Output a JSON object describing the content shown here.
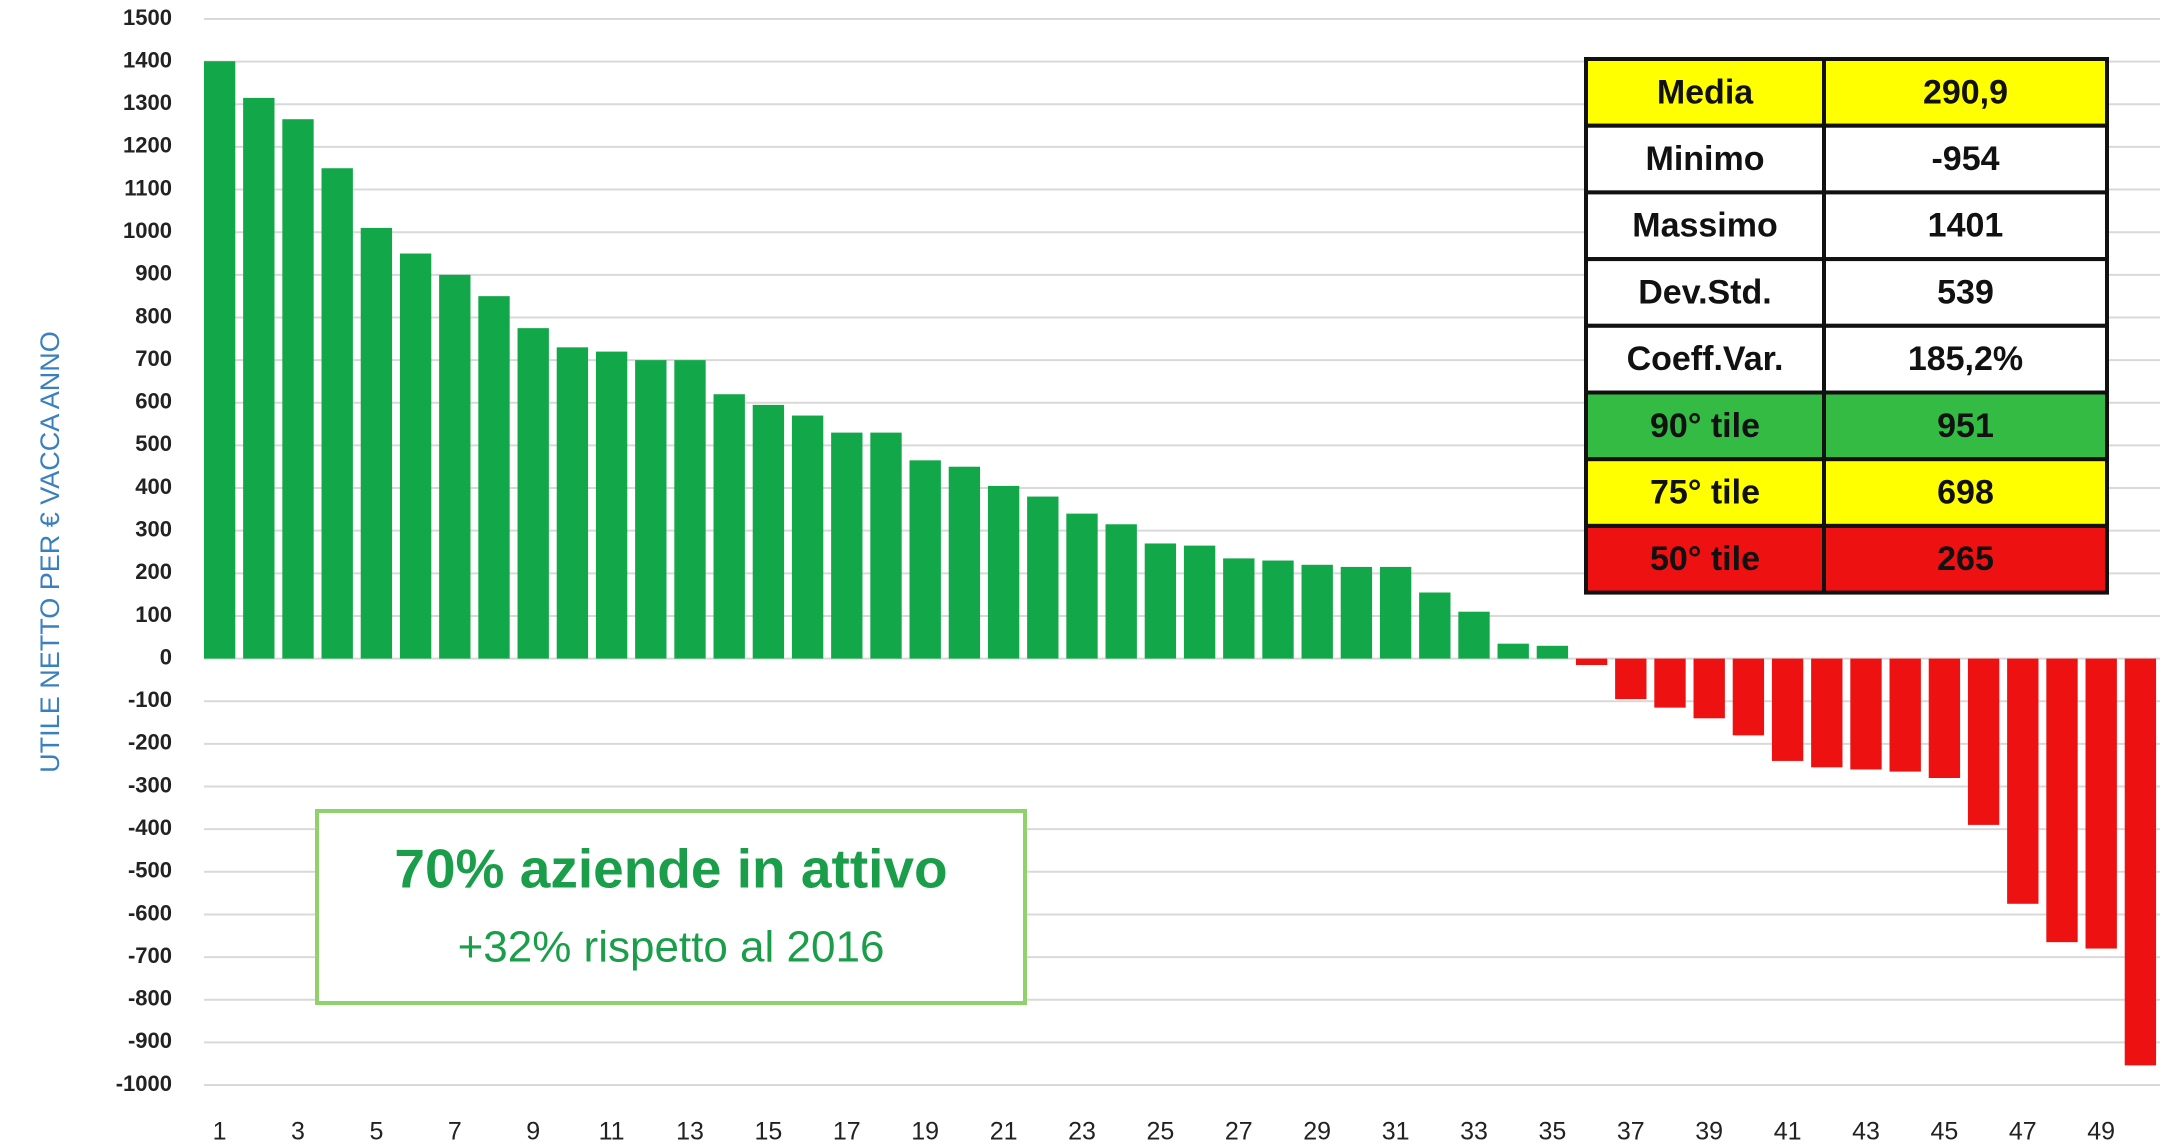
{
  "chart_data": {
    "type": "bar",
    "y_label": "UTILE NETTO PER € VACCA ANNO",
    "categories": [
      "1",
      null,
      "3",
      null,
      "5",
      null,
      "7",
      null,
      "9",
      null,
      "11",
      null,
      "13",
      null,
      "15",
      null,
      "17",
      null,
      "19",
      null,
      "21",
      null,
      "23",
      null,
      "25",
      null,
      "27",
      null,
      "29",
      null,
      "31",
      null,
      "33",
      null,
      "35",
      null,
      "37",
      null,
      "39",
      null,
      "41",
      null,
      "43",
      null,
      "45",
      null,
      "47",
      null,
      "49",
      null
    ],
    "values": [
      1401,
      1315,
      1265,
      1150,
      1010,
      950,
      900,
      850,
      775,
      730,
      720,
      700,
      700,
      620,
      595,
      570,
      530,
      530,
      465,
      450,
      405,
      380,
      340,
      315,
      270,
      265,
      235,
      230,
      220,
      215,
      215,
      155,
      110,
      35,
      30,
      -15,
      -95,
      -115,
      -140,
      -180,
      -240,
      -255,
      -260,
      -265,
      -280,
      -390,
      -575,
      -665,
      -680,
      -954
    ],
    "positive_color": "#12a84a",
    "negative_color": "#ee1111",
    "ylim": [
      -1000,
      1500
    ],
    "yticks": [
      -1000,
      -900,
      -800,
      -700,
      -600,
      -500,
      -400,
      -300,
      -200,
      -100,
      0,
      100,
      200,
      300,
      400,
      500,
      600,
      700,
      800,
      900,
      1000,
      1100,
      1200,
      1300,
      1400,
      1500
    ],
    "grid": true,
    "annotation": {
      "lines": [
        "70% aziende in attivo",
        "+32% rispetto al 2016"
      ]
    }
  },
  "table": {
    "rows": [
      {
        "label": "Media",
        "value": "290,9",
        "color": "#ffff00"
      },
      {
        "label": "Minimo",
        "value": "-954",
        "color": "#ffffff"
      },
      {
        "label": "Massimo",
        "value": "1401",
        "color": "#ffffff"
      },
      {
        "label": "Dev.Std.",
        "value": "539",
        "color": "#ffffff"
      },
      {
        "label": "Coeff.Var.",
        "value": "185,2%",
        "color": "#ffffff"
      },
      {
        "label": "90° tile",
        "value": "951",
        "color": "#33bb44"
      },
      {
        "label": "75° tile",
        "value": "698",
        "color": "#ffff00"
      },
      {
        "label": "50° tile",
        "value": "265",
        "color": "#ee1111"
      }
    ]
  }
}
